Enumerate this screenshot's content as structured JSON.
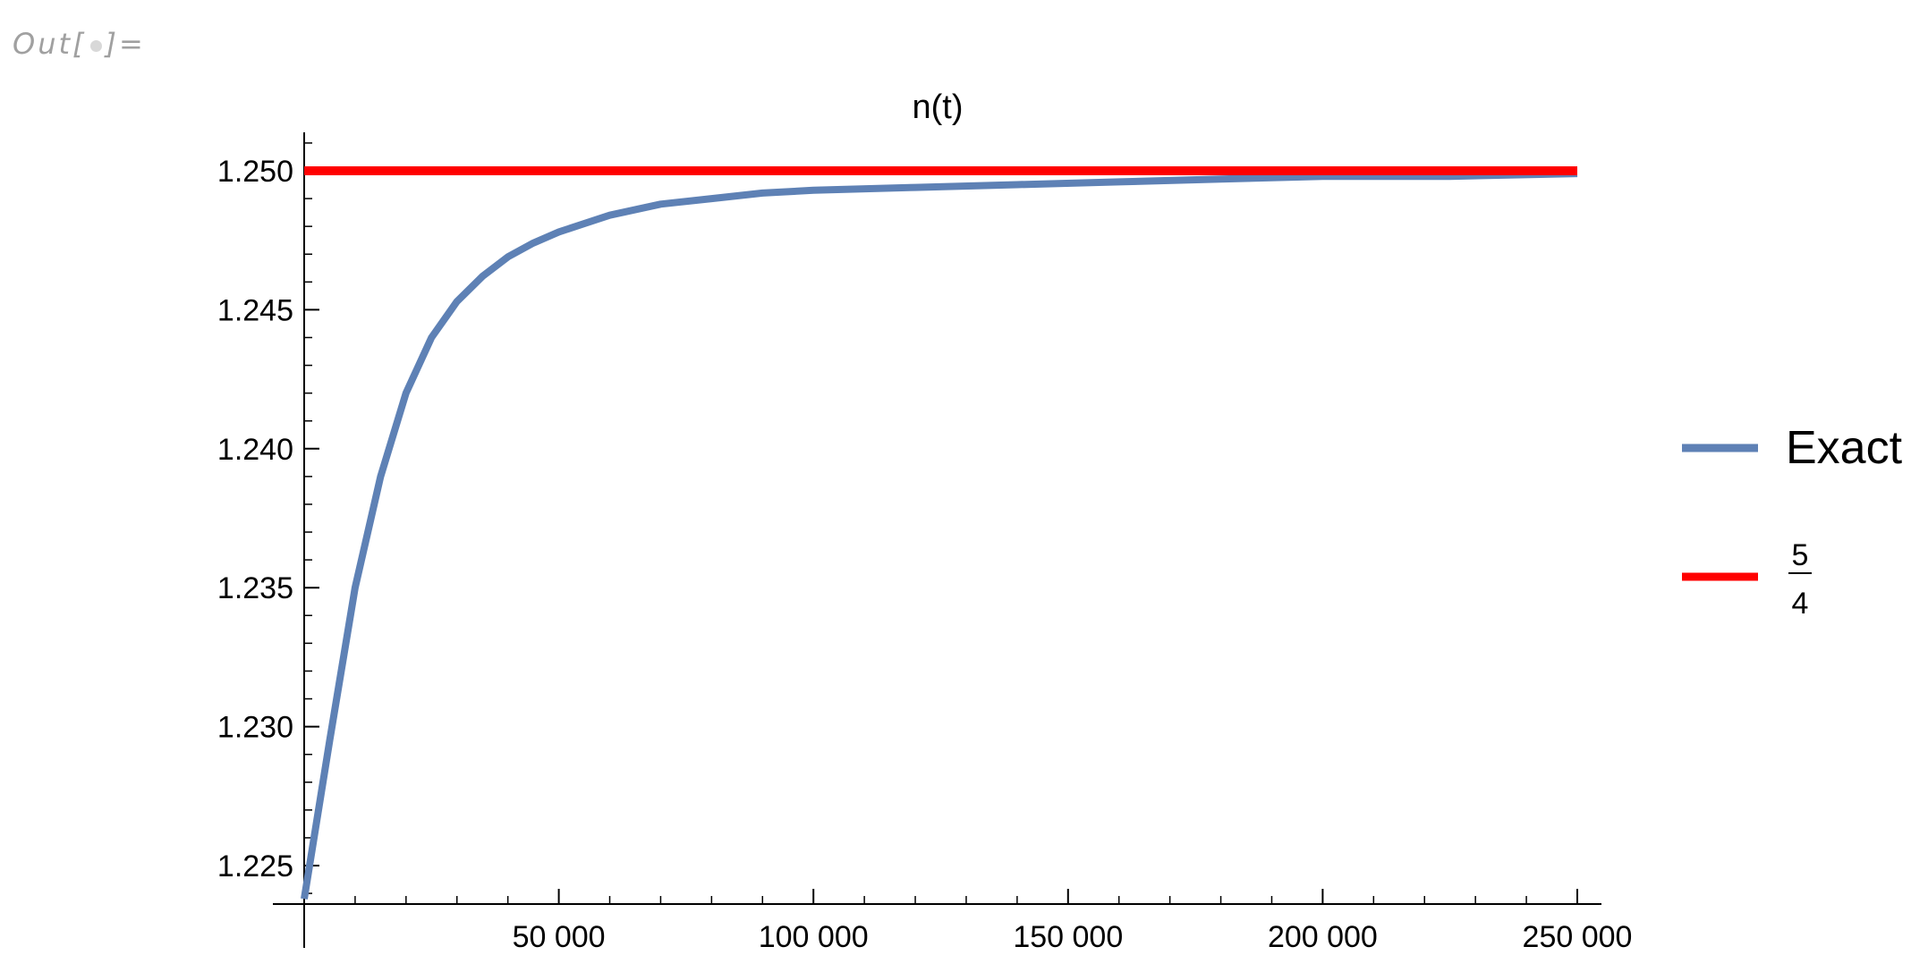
{
  "cell": {
    "out_label": "Out[",
    "out_label_end": "]="
  },
  "chart_data": {
    "type": "line",
    "title": "n(t)",
    "xlabel": "",
    "ylabel": "",
    "xlim": [
      0,
      250000
    ],
    "ylim": [
      1.2238,
      1.2516
    ],
    "x_ticks": [
      50000,
      100000,
      150000,
      200000,
      250000
    ],
    "x_tick_labels": [
      "50 000",
      "100 000",
      "150 000",
      "200 000",
      "250 000"
    ],
    "y_ticks": [
      1.225,
      1.23,
      1.235,
      1.24,
      1.245,
      1.25
    ],
    "y_tick_labels": [
      "1.225",
      "1.230",
      "1.235",
      "1.240",
      "1.245",
      "1.250"
    ],
    "grid": false,
    "legend_position": "right",
    "series": [
      {
        "name": "Exact",
        "color": "#5e81b5",
        "x": [
          0,
          5000,
          10000,
          15000,
          20000,
          25000,
          30000,
          35000,
          40000,
          45000,
          50000,
          60000,
          70000,
          80000,
          90000,
          100000,
          120000,
          140000,
          160000,
          180000,
          200000,
          225000,
          250000
        ],
        "y": [
          1.2238,
          1.2295,
          1.235,
          1.239,
          1.242,
          1.244,
          1.2453,
          1.2462,
          1.2469,
          1.2474,
          1.2478,
          1.2484,
          1.2488,
          1.249,
          1.2492,
          1.2493,
          1.2494,
          1.2495,
          1.2496,
          1.2497,
          1.2498,
          1.2498,
          1.2499
        ]
      },
      {
        "name_numerator": "5",
        "name_denominator": "4",
        "color": "#ff0000",
        "x": [
          0,
          250000
        ],
        "y": [
          1.25,
          1.25
        ]
      }
    ]
  }
}
